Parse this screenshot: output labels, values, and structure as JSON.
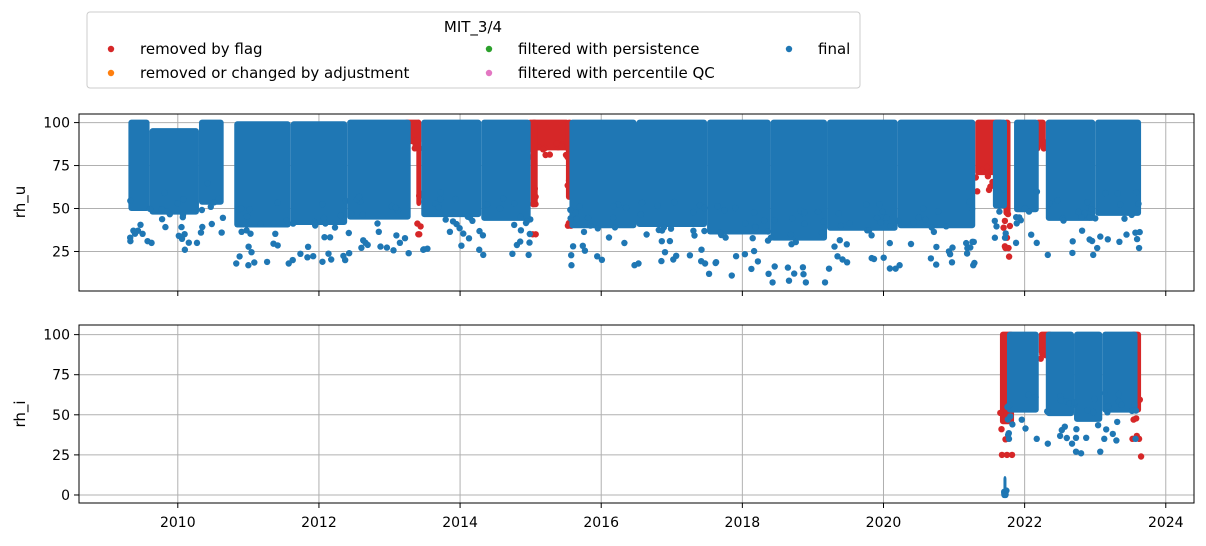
{
  "legend": {
    "title": "MIT_3/4",
    "items": [
      {
        "label": "removed by flag",
        "color": "#d62728"
      },
      {
        "label": "removed or changed by adjustment",
        "color": "#ff7f0e"
      },
      {
        "label": "filtered with persistence",
        "color": "#2ca02c"
      },
      {
        "label": "filtered with percentile QC",
        "color": "#e377c2"
      },
      {
        "label": "final",
        "color": "#1f77b4"
      }
    ]
  },
  "chart_data": [
    {
      "type": "scatter",
      "ylabel": "rh_u",
      "xlim": [
        2008.6,
        2024.4
      ],
      "ylim": [
        2,
        105
      ],
      "yticks": [
        25,
        50,
        75,
        100
      ],
      "grid": true,
      "series": [
        {
          "name": "removed by flag",
          "color": "#d62728",
          "segments": [
            {
              "x": [
                2013.2,
                2013.45
              ],
              "y": [
                85,
                100
              ]
            },
            {
              "x": [
                2013.38,
                2013.45
              ],
              "y": [
                35,
                100
              ]
            },
            {
              "x": [
                2014.95,
                2015.55
              ],
              "y": [
                80,
                100
              ]
            },
            {
              "x": [
                2015.0,
                2015.1
              ],
              "y": [
                35,
                100
              ]
            },
            {
              "x": [
                2015.5,
                2015.6
              ],
              "y": [
                40,
                100
              ]
            },
            {
              "x": [
                2021.3,
                2021.7
              ],
              "y": [
                60,
                100
              ]
            },
            {
              "x": [
                2021.7,
                2021.8
              ],
              "y": [
                27,
                100
              ]
            },
            {
              "x": [
                2022.15,
                2022.3
              ],
              "y": [
                85,
                100
              ]
            }
          ],
          "points": [
            [
              2021.78,
              22
            ],
            [
              2021.72,
              28
            ],
            [
              2021.75,
              33
            ]
          ]
        },
        {
          "name": "final",
          "color": "#1f77b4",
          "segments": [
            {
              "x": [
                2009.3,
                2009.6
              ],
              "y": [
                31,
                100
              ]
            },
            {
              "x": [
                2009.6,
                2010.3
              ],
              "y": [
                30,
                95
              ]
            },
            {
              "x": [
                2010.3,
                2010.65
              ],
              "y": [
                36,
                100
              ]
            },
            {
              "x": [
                2010.8,
                2011.6
              ],
              "y": [
                18,
                99
              ]
            },
            {
              "x": [
                2011.6,
                2012.4
              ],
              "y": [
                20,
                99
              ]
            },
            {
              "x": [
                2012.4,
                2013.3
              ],
              "y": [
                24,
                100
              ]
            },
            {
              "x": [
                2013.45,
                2014.3
              ],
              "y": [
                26,
                100
              ]
            },
            {
              "x": [
                2014.3,
                2015.0
              ],
              "y": [
                23,
                100
              ]
            },
            {
              "x": [
                2015.55,
                2016.5
              ],
              "y": [
                17,
                100
              ]
            },
            {
              "x": [
                2016.5,
                2017.5
              ],
              "y": [
                18,
                100
              ]
            },
            {
              "x": [
                2017.5,
                2018.4
              ],
              "y": [
                12,
                100
              ]
            },
            {
              "x": [
                2018.4,
                2019.2
              ],
              "y": [
                7,
                100
              ]
            },
            {
              "x": [
                2019.2,
                2020.2
              ],
              "y": [
                15,
                100
              ]
            },
            {
              "x": [
                2020.2,
                2021.3
              ],
              "y": [
                17,
                100
              ]
            },
            {
              "x": [
                2021.55,
                2021.75
              ],
              "y": [
                33,
                100
              ]
            },
            {
              "x": [
                2021.85,
                2022.2
              ],
              "y": [
                30,
                100
              ]
            },
            {
              "x": [
                2022.3,
                2023.0
              ],
              "y": [
                23,
                100
              ]
            },
            {
              "x": [
                2023.0,
                2023.65
              ],
              "y": [
                27,
                100
              ]
            }
          ],
          "points": [
            [
              2018.9,
              7
            ],
            [
              2010.1,
              26
            ],
            [
              2011.0,
              17
            ],
            [
              2012.05,
              19
            ],
            [
              2017.85,
              11
            ]
          ]
        }
      ]
    },
    {
      "type": "scatter",
      "ylabel": "rh_i",
      "xlim": [
        2008.6,
        2024.4
      ],
      "ylim": [
        -5,
        106
      ],
      "yticks": [
        0,
        25,
        50,
        75,
        100
      ],
      "xticks": [
        2010,
        2012,
        2014,
        2016,
        2018,
        2020,
        2022,
        2024
      ],
      "grid": true,
      "series": [
        {
          "name": "removed by flag",
          "color": "#d62728",
          "segments": [
            {
              "x": [
                2021.65,
                2021.85
              ],
              "y": [
                25,
                100
              ]
            },
            {
              "x": [
                2022.2,
                2022.4
              ],
              "y": [
                85,
                100
              ]
            },
            {
              "x": [
                2023.5,
                2023.65
              ],
              "y": [
                35,
                100
              ]
            }
          ],
          "points": [
            [
              2023.65,
              24
            ],
            [
              2021.75,
              25
            ]
          ]
        },
        {
          "name": "final",
          "color": "#1f77b4",
          "segments": [
            {
              "x": [
                2021.75,
                2022.2
              ],
              "y": [
                35,
                100
              ]
            },
            {
              "x": [
                2022.3,
                2022.7
              ],
              "y": [
                32,
                100
              ]
            },
            {
              "x": [
                2022.7,
                2023.1
              ],
              "y": [
                27,
                100
              ]
            },
            {
              "x": [
                2023.1,
                2023.6
              ],
              "y": [
                35,
                100
              ]
            },
            {
              "x": [
                2021.7,
                2021.72
              ],
              "y": [
                0,
                10
              ]
            }
          ],
          "points": [
            [
              2022.8,
              26
            ],
            [
              2023.3,
              34
            ]
          ]
        }
      ]
    }
  ]
}
